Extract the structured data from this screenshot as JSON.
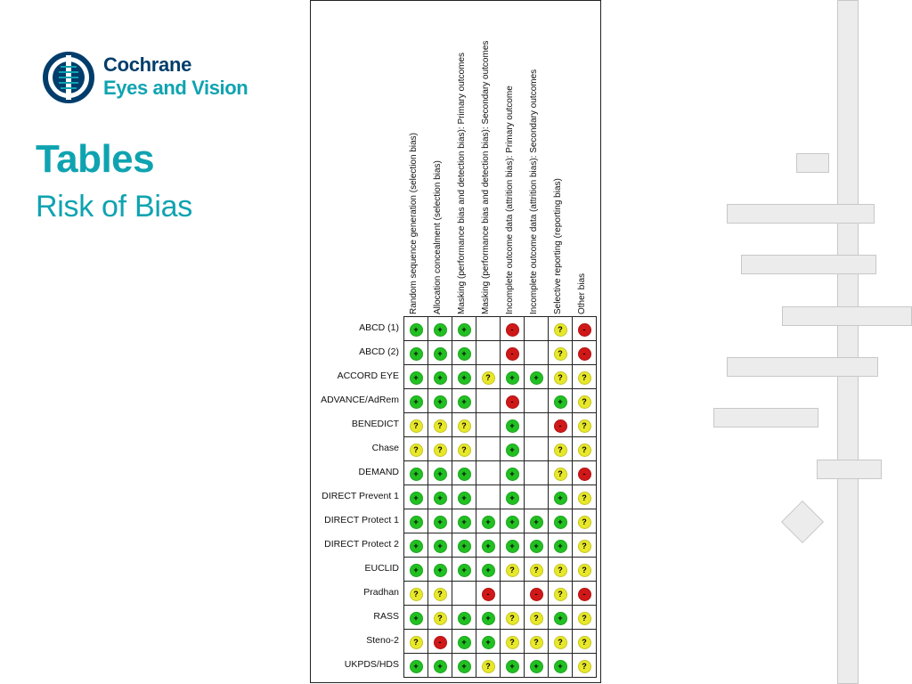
{
  "brand": {
    "line1": "Cochrane",
    "line2": "Eyes and Vision"
  },
  "title": "Tables",
  "subtitle": "Risk of Bias",
  "colors": {
    "accent": "#0fa3b1",
    "navy": "#003d6b",
    "low": "#22c022",
    "unclear": "#e8e82a",
    "high": "#d01818"
  },
  "symbols": {
    "low": "+",
    "unclear": "?",
    "high": "-"
  },
  "columns": [
    "Random sequence generation (selection bias)",
    "Allocation concealment (selection bias)",
    "Masking (performance bias and detection bias): Primary outcomes",
    "Masking (performance bias and detection bias): Secondary outcomes",
    "Incomplete outcome data (attrition bias): Primary outcome",
    "Incomplete outcome data (attrition bias): Secondary outcomes",
    "Selective reporting (reporting bias)",
    "Other bias"
  ],
  "studies": [
    {
      "name": "ABCD (1)",
      "ratings": [
        "low",
        "low",
        "low",
        "",
        "high",
        "",
        "unclear",
        "high"
      ]
    },
    {
      "name": "ABCD (2)",
      "ratings": [
        "low",
        "low",
        "low",
        "",
        "high",
        "",
        "unclear",
        "high"
      ]
    },
    {
      "name": "ACCORD EYE",
      "ratings": [
        "low",
        "low",
        "low",
        "unclear",
        "low",
        "low",
        "unclear",
        "unclear"
      ]
    },
    {
      "name": "ADVANCE/AdRem",
      "ratings": [
        "low",
        "low",
        "low",
        "",
        "high",
        "",
        "low",
        "unclear"
      ]
    },
    {
      "name": "BENEDICT",
      "ratings": [
        "unclear",
        "unclear",
        "unclear",
        "",
        "low",
        "",
        "high",
        "unclear"
      ]
    },
    {
      "name": "Chase",
      "ratings": [
        "unclear",
        "unclear",
        "unclear",
        "",
        "low",
        "",
        "unclear",
        "unclear"
      ]
    },
    {
      "name": "DEMAND",
      "ratings": [
        "low",
        "low",
        "low",
        "",
        "low",
        "",
        "unclear",
        "high"
      ]
    },
    {
      "name": "DIRECT Prevent 1",
      "ratings": [
        "low",
        "low",
        "low",
        "",
        "low",
        "",
        "low",
        "unclear"
      ]
    },
    {
      "name": "DIRECT Protect 1",
      "ratings": [
        "low",
        "low",
        "low",
        "low",
        "low",
        "low",
        "low",
        "unclear"
      ]
    },
    {
      "name": "DIRECT Protect 2",
      "ratings": [
        "low",
        "low",
        "low",
        "low",
        "low",
        "low",
        "low",
        "unclear"
      ]
    },
    {
      "name": "EUCLID",
      "ratings": [
        "low",
        "low",
        "low",
        "low",
        "unclear",
        "unclear",
        "unclear",
        "unclear"
      ]
    },
    {
      "name": "Pradhan",
      "ratings": [
        "unclear",
        "unclear",
        "",
        "high",
        "",
        "high",
        "unclear",
        "high"
      ]
    },
    {
      "name": "RASS",
      "ratings": [
        "low",
        "unclear",
        "low",
        "low",
        "unclear",
        "unclear",
        "low",
        "unclear"
      ]
    },
    {
      "name": "Steno-2",
      "ratings": [
        "unclear",
        "high",
        "low",
        "low",
        "unclear",
        "unclear",
        "unclear",
        "unclear"
      ]
    },
    {
      "name": "UKPDS/HDS",
      "ratings": [
        "low",
        "low",
        "low",
        "unclear",
        "low",
        "low",
        "low",
        "unclear"
      ]
    }
  ]
}
